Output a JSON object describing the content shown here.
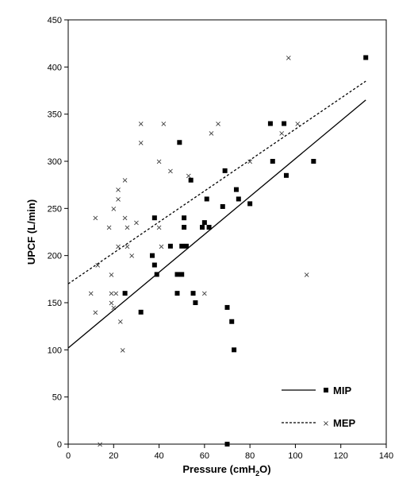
{
  "chart_data": {
    "type": "scatter",
    "xlabel": "Pressure (cmH",
    "xlabel_sub": "2",
    "xlabel_end": "O)",
    "ylabel": "UPCF (L/min)",
    "xlim": [
      0,
      140
    ],
    "ylim": [
      0,
      450
    ],
    "x_ticks": [
      0,
      20,
      40,
      60,
      80,
      100,
      120,
      140
    ],
    "y_ticks": [
      0,
      50,
      100,
      150,
      200,
      250,
      300,
      350,
      400,
      450
    ],
    "grid": false,
    "legend_position": "bottom-right",
    "series": [
      {
        "name": "MIP",
        "marker": "square",
        "line_style": "solid",
        "fit_line": {
          "x": [
            0,
            131
          ],
          "y": [
            102,
            365
          ]
        },
        "points": [
          {
            "x": 25,
            "y": 160
          },
          {
            "x": 32,
            "y": 140
          },
          {
            "x": 37,
            "y": 200
          },
          {
            "x": 38,
            "y": 190
          },
          {
            "x": 38,
            "y": 240
          },
          {
            "x": 39,
            "y": 180
          },
          {
            "x": 45,
            "y": 210
          },
          {
            "x": 48,
            "y": 160
          },
          {
            "x": 48,
            "y": 180
          },
          {
            "x": 49,
            "y": 320
          },
          {
            "x": 50,
            "y": 180
          },
          {
            "x": 50,
            "y": 210
          },
          {
            "x": 51,
            "y": 230
          },
          {
            "x": 51,
            "y": 240
          },
          {
            "x": 52,
            "y": 210
          },
          {
            "x": 54,
            "y": 280
          },
          {
            "x": 55,
            "y": 160
          },
          {
            "x": 56,
            "y": 150
          },
          {
            "x": 59,
            "y": 230
          },
          {
            "x": 60,
            "y": 235
          },
          {
            "x": 61,
            "y": 260
          },
          {
            "x": 62,
            "y": 230
          },
          {
            "x": 68,
            "y": 252
          },
          {
            "x": 69,
            "y": 290
          },
          {
            "x": 70,
            "y": 145
          },
          {
            "x": 70,
            "y": 0
          },
          {
            "x": 72,
            "y": 130
          },
          {
            "x": 73,
            "y": 100
          },
          {
            "x": 74,
            "y": 270
          },
          {
            "x": 75,
            "y": 260
          },
          {
            "x": 80,
            "y": 255
          },
          {
            "x": 89,
            "y": 340
          },
          {
            "x": 90,
            "y": 300
          },
          {
            "x": 95,
            "y": 340
          },
          {
            "x": 96,
            "y": 285
          },
          {
            "x": 108,
            "y": 300
          },
          {
            "x": 131,
            "y": 410
          }
        ]
      },
      {
        "name": "MEP",
        "marker": "x",
        "line_style": "dotted",
        "fit_line": {
          "x": [
            0,
            131
          ],
          "y": [
            170,
            385
          ]
        },
        "points": [
          {
            "x": 10,
            "y": 160
          },
          {
            "x": 12,
            "y": 140
          },
          {
            "x": 12,
            "y": 240
          },
          {
            "x": 13,
            "y": 190
          },
          {
            "x": 14,
            "y": 0
          },
          {
            "x": 18,
            "y": 230
          },
          {
            "x": 19,
            "y": 150
          },
          {
            "x": 19,
            "y": 180
          },
          {
            "x": 19,
            "y": 160
          },
          {
            "x": 20,
            "y": 250
          },
          {
            "x": 20,
            "y": 145
          },
          {
            "x": 21,
            "y": 160
          },
          {
            "x": 22,
            "y": 260
          },
          {
            "x": 22,
            "y": 270
          },
          {
            "x": 22,
            "y": 210
          },
          {
            "x": 23,
            "y": 130
          },
          {
            "x": 24,
            "y": 100
          },
          {
            "x": 25,
            "y": 240
          },
          {
            "x": 25,
            "y": 280
          },
          {
            "x": 26,
            "y": 230
          },
          {
            "x": 26,
            "y": 210
          },
          {
            "x": 28,
            "y": 200
          },
          {
            "x": 30,
            "y": 235
          },
          {
            "x": 32,
            "y": 320
          },
          {
            "x": 32,
            "y": 340
          },
          {
            "x": 40,
            "y": 300
          },
          {
            "x": 40,
            "y": 230
          },
          {
            "x": 41,
            "y": 210
          },
          {
            "x": 42,
            "y": 340
          },
          {
            "x": 45,
            "y": 290
          },
          {
            "x": 53,
            "y": 285
          },
          {
            "x": 60,
            "y": 160
          },
          {
            "x": 63,
            "y": 330
          },
          {
            "x": 66,
            "y": 340
          },
          {
            "x": 80,
            "y": 300
          },
          {
            "x": 94,
            "y": 330
          },
          {
            "x": 97,
            "y": 410
          },
          {
            "x": 101,
            "y": 340
          },
          {
            "x": 105,
            "y": 180
          }
        ]
      }
    ]
  }
}
